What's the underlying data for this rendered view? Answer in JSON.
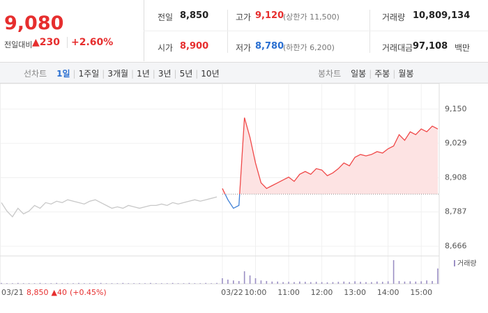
{
  "quote": {
    "price": "9,080",
    "change_label": "전일대비",
    "change": "▲230",
    "change_rate": "+2.60%"
  },
  "stats": [
    {
      "label": "전일",
      "value": "8,850"
    },
    {
      "label": "고가",
      "value": "9,120",
      "note": "(상한가 11,500)"
    },
    {
      "label": "거래량",
      "value": "10,809,134"
    },
    {
      "label": "시가",
      "value": "8,900"
    },
    {
      "label": "저가",
      "value": "8,780",
      "note": "(하한가 6,200)"
    },
    {
      "label": "거래대금",
      "value": "97,108",
      "unit": "백만"
    }
  ],
  "line_tabs": {
    "label": "선차트",
    "items": [
      "1일",
      "1주일",
      "3개월",
      "1년",
      "3년",
      "5년",
      "10년"
    ]
  },
  "candle_tabs": {
    "label": "봉차트",
    "items": [
      "일봉",
      "주봉",
      "월봉"
    ]
  },
  "prev_day_summary": {
    "close": "8,850",
    "change": "▲40",
    "rate": "(+0.45%)"
  },
  "chart_data": [
    {
      "type": "line",
      "categories": [
        "03/21",
        null,
        null,
        null,
        null,
        null,
        null,
        null,
        null,
        null,
        null,
        null,
        null,
        null,
        null,
        null,
        null,
        null,
        null,
        null,
        null,
        null,
        null,
        null,
        null,
        null,
        null,
        null,
        null,
        null,
        null,
        null,
        null,
        null,
        null,
        null,
        null,
        null,
        null,
        null,
        "03/22",
        null,
        null,
        null,
        null,
        null,
        "10:00",
        null,
        null,
        null,
        null,
        null,
        "11:00",
        null,
        null,
        null,
        null,
        null,
        "12:00",
        null,
        null,
        null,
        null,
        null,
        "13:00",
        null,
        null,
        null,
        null,
        null,
        "14:00",
        null,
        null,
        null,
        null,
        null,
        "15:00",
        null,
        null,
        null
      ],
      "series": [
        {
          "color": "#c8c8c8",
          "values": [
            8820,
            8790,
            8770,
            8800,
            8780,
            8790,
            8810,
            8800,
            8820,
            8815,
            8825,
            8820,
            8830,
            8825,
            8820,
            8815,
            8825,
            8830,
            8820,
            8810,
            8800,
            8805,
            8800,
            8810,
            8805,
            8800,
            8805,
            8810,
            8810,
            8815,
            8810,
            8820,
            8815,
            8820,
            8825,
            8830,
            8825,
            8830,
            8835,
            8840,
            null,
            null,
            null,
            null,
            null,
            null,
            null,
            null,
            null,
            null,
            null,
            null,
            null,
            null,
            null,
            null,
            null,
            null,
            null,
            null,
            null,
            null,
            null,
            null,
            null,
            null,
            null,
            null,
            null,
            null,
            null,
            null,
            null,
            null,
            null,
            null,
            null,
            null,
            null,
            null
          ]
        },
        {
          "color": "#f04848",
          "values": [
            null,
            null,
            null,
            null,
            null,
            null,
            null,
            null,
            null,
            null,
            null,
            null,
            null,
            null,
            null,
            null,
            null,
            null,
            null,
            null,
            null,
            null,
            null,
            null,
            null,
            null,
            null,
            null,
            null,
            null,
            null,
            null,
            null,
            null,
            null,
            null,
            null,
            null,
            null,
            null,
            8870,
            8830,
            8800,
            8810,
            9120,
            9050,
            8960,
            8890,
            8870,
            8880,
            8890,
            8900,
            8910,
            8895,
            8920,
            8930,
            8920,
            8940,
            8935,
            8915,
            8925,
            8940,
            8960,
            8950,
            8980,
            8990,
            8985,
            8990,
            9000,
            8995,
            9010,
            9020,
            9060,
            9040,
            9070,
            9060,
            9080,
            9070,
            9090,
            9080
          ]
        }
      ],
      "below_color": "#3d7fd6",
      "fill_color": "#fde3e3",
      "baseline": 8850,
      "ylim": [
        8639,
        9221
      ],
      "yticks": [
        {
          "value": 9150,
          "label": "9,150"
        },
        {
          "value": 9029,
          "label": "9,029"
        },
        {
          "value": 8908,
          "label": "8,908"
        },
        {
          "value": 8787,
          "label": "8,787"
        },
        {
          "value": 8666,
          "label": "8,666"
        }
      ],
      "grid": true
    },
    {
      "type": "bar",
      "name": "거래량",
      "color": "#9b8fc4",
      "ylim": [
        0,
        100
      ],
      "values": [
        3,
        2,
        2,
        3,
        2,
        2,
        2,
        3,
        2,
        2,
        3,
        2,
        2,
        2,
        3,
        2,
        2,
        2,
        3,
        2,
        2,
        2,
        3,
        2,
        2,
        2,
        2,
        3,
        2,
        2,
        2,
        3,
        2,
        2,
        3,
        2,
        2,
        3,
        2,
        3,
        20,
        15,
        12,
        10,
        45,
        30,
        20,
        12,
        10,
        8,
        8,
        6,
        7,
        6,
        8,
        7,
        6,
        7,
        6,
        5,
        6,
        7,
        8,
        6,
        9,
        7,
        6,
        6,
        8,
        7,
        9,
        85,
        10,
        8,
        9,
        8,
        9,
        12,
        10,
        55
      ]
    }
  ]
}
